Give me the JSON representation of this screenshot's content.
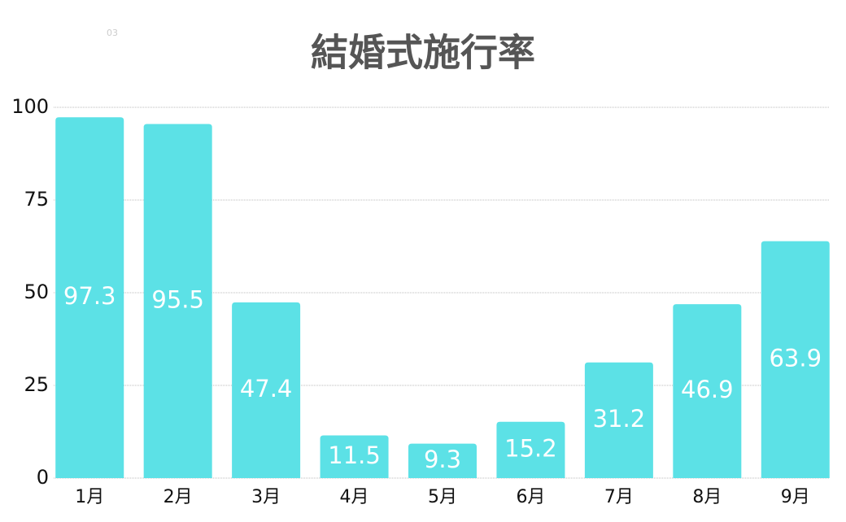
{
  "chart_data": {
    "type": "bar",
    "title": "結婚式施行率",
    "annotation": "03",
    "categories": [
      "1月",
      "2月",
      "3月",
      "4月",
      "5月",
      "6月",
      "7月",
      "8月",
      "9月"
    ],
    "values": [
      97.3,
      95.5,
      47.4,
      11.5,
      9.3,
      15.2,
      31.2,
      46.9,
      63.9
    ],
    "color": "#5ce1e6",
    "ylim": [
      0,
      100
    ],
    "yticks": [
      0,
      25,
      50,
      75,
      100
    ],
    "grid": true
  }
}
